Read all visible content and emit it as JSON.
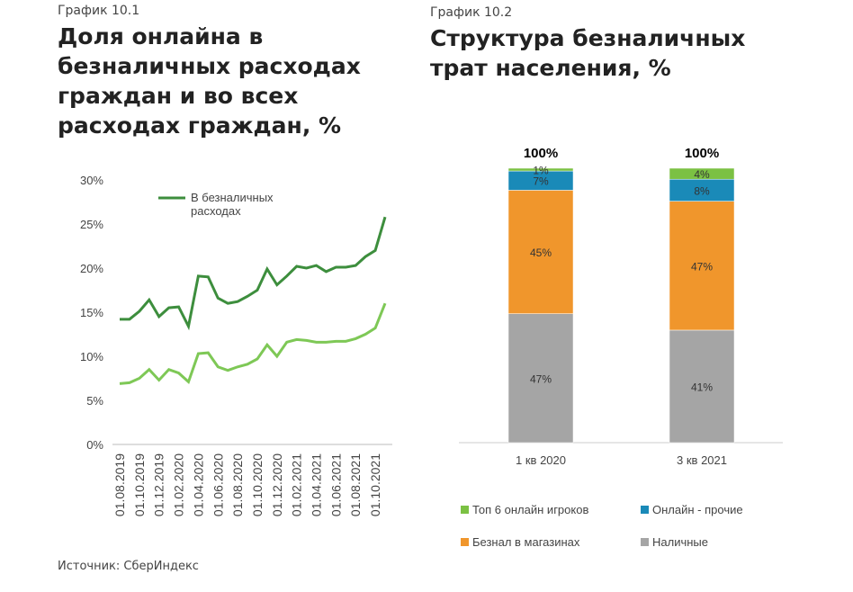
{
  "chart_data": [
    {
      "type": "line",
      "caption": "График 10.1",
      "title": "Доля онлайна в безналичных расходах граждан и во всех расходах граждан, %",
      "categories": [
        "01.08.2019",
        null,
        "01.10.2019",
        null,
        "01.12.2019",
        null,
        "01.02.2020",
        null,
        "01.04.2020",
        null,
        "01.06.2020",
        null,
        "01.08.2020",
        null,
        "01.10.2020",
        null,
        "01.12.2020",
        null,
        "01.02.2021",
        null,
        "01.04.2021",
        null,
        "01.06.2021",
        null,
        "01.08.2021",
        null,
        "01.10.2021",
        null
      ],
      "series": [
        {
          "name": "В безналичных расходах",
          "color": "#3d8e3d",
          "values": [
            14.2,
            14.2,
            15.1,
            16.4,
            14.5,
            15.5,
            15.6,
            13.4,
            19.1,
            19.0,
            16.6,
            16.0,
            16.2,
            16.8,
            17.5,
            19.9,
            18.1,
            19.1,
            20.2,
            20.0,
            20.3,
            19.6,
            20.1,
            20.1,
            20.3,
            21.3,
            22.0,
            25.8
          ]
        },
        {
          "color": "#7ec856",
          "values": [
            6.9,
            7.0,
            7.5,
            8.5,
            7.3,
            8.5,
            8.1,
            7.1,
            10.3,
            10.4,
            8.8,
            8.4,
            8.8,
            9.1,
            9.7,
            11.3,
            10.0,
            11.6,
            11.9,
            11.8,
            11.6,
            11.6,
            11.7,
            11.7,
            12.0,
            12.5,
            13.2,
            16.0
          ]
        }
      ],
      "ylim": [
        0,
        30
      ],
      "yticks": [
        {
          "value": 0,
          "label": "0%"
        },
        {
          "value": 5,
          "label": "5%"
        },
        {
          "value": 10,
          "label": "10%"
        },
        {
          "value": 15,
          "label": "15%"
        },
        {
          "value": 20,
          "label": "20%"
        },
        {
          "value": 25,
          "label": "25%"
        },
        {
          "value": 30,
          "label": "30%"
        }
      ],
      "source": "Источник: СберИндекс"
    },
    {
      "type": "stacked_bar",
      "caption": "График 10.2",
      "title": "Структура безналичных трат населения, %",
      "categories": [
        "1 кв 2020",
        "3 кв 2021"
      ],
      "totals": [
        100,
        100
      ],
      "total_labels": [
        "100%",
        "100%"
      ],
      "series": [
        {
          "name": "Наличные",
          "color": "#a5a5a5",
          "values": [
            47,
            41
          ],
          "value_labels": [
            "47%",
            "41%"
          ]
        },
        {
          "name": "Безнал в магазинах",
          "color": "#f0962c",
          "values": [
            45,
            47
          ],
          "value_labels": [
            "45%",
            "47%"
          ]
        },
        {
          "name": "Онлайн - прочие",
          "color": "#1a8ab8",
          "values": [
            7,
            8
          ],
          "value_labels": [
            "7%",
            "8%"
          ]
        },
        {
          "name": "Топ 6 онлайн игроков",
          "color": "#7bc143",
          "values": [
            1,
            4
          ],
          "value_labels": [
            "1%",
            "4%"
          ]
        }
      ]
    }
  ]
}
